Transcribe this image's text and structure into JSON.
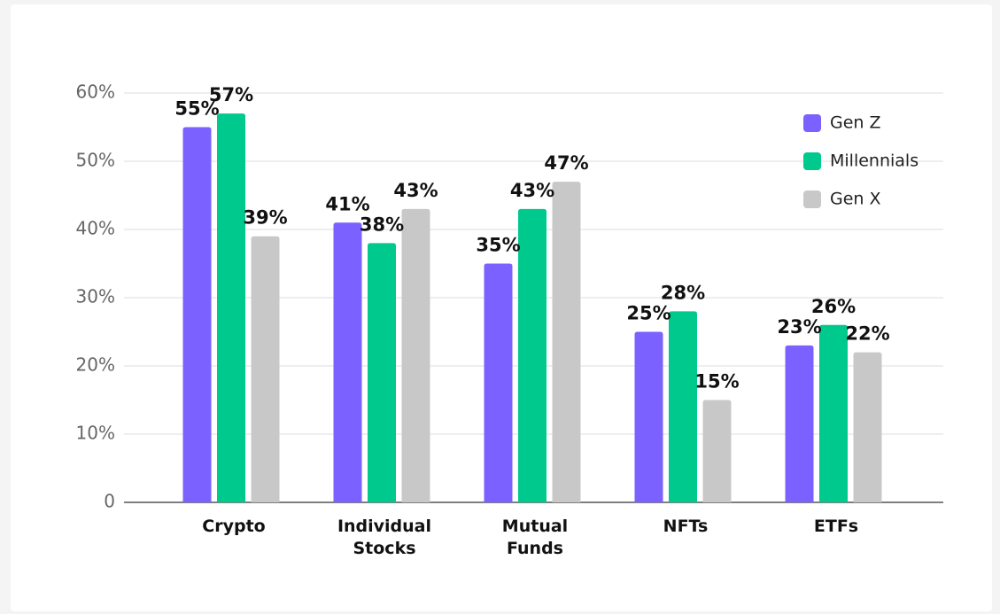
{
  "chart_data": {
    "type": "bar",
    "categories": [
      "Crypto",
      "Individual Stocks",
      "Mutual Funds",
      "NFTs",
      "ETFs"
    ],
    "series": [
      {
        "name": "Gen Z",
        "color": "#7b61ff",
        "values": [
          55,
          41,
          35,
          25,
          23
        ],
        "value_labels": [
          "55%",
          "41%",
          "35%",
          "25%",
          "23%"
        ]
      },
      {
        "name": "Millennials",
        "color": "#00c98d",
        "values": [
          57,
          38,
          43,
          28,
          26
        ],
        "value_labels": [
          "57%",
          "38%",
          "43%",
          "28%",
          "26%"
        ]
      },
      {
        "name": "Gen X",
        "color": "#c8c8c8",
        "values": [
          39,
          43,
          47,
          15,
          22
        ],
        "value_labels": [
          "39%",
          "43%",
          "47%",
          "15%",
          "22%"
        ]
      }
    ],
    "ylim": [
      0,
      60
    ],
    "yticks": [
      0,
      {
        "value": 10,
        "label": "10%"
      },
      {
        "value": 20,
        "label": "20%"
      },
      {
        "value": 30,
        "label": "30%"
      },
      {
        "value": 40,
        "label": "40%"
      },
      {
        "value": 50,
        "label": "50%"
      },
      {
        "value": 60,
        "label": "60%"
      }
    ],
    "grid": true,
    "legend": "top-right"
  }
}
